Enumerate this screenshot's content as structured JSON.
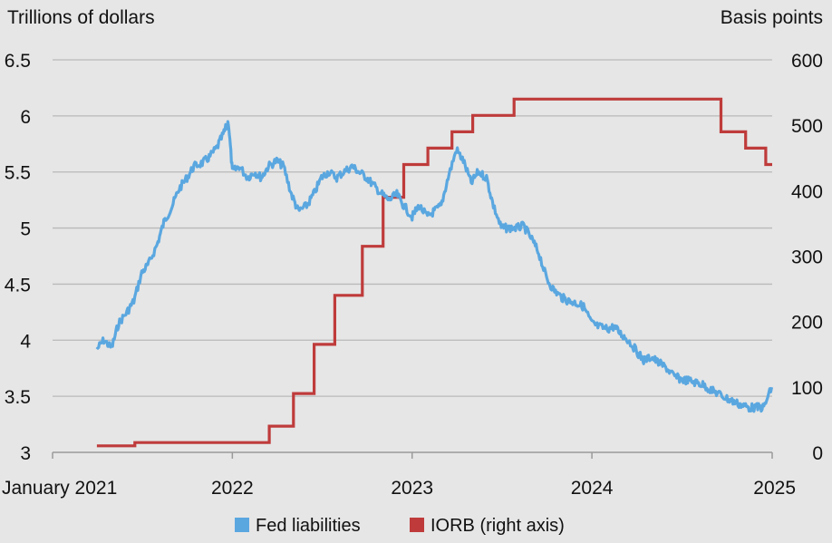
{
  "chart_data": {
    "type": "line",
    "title": "",
    "y_left_label": "Trillions of dollars",
    "y_right_label": "Basis points",
    "ylim_left": [
      3,
      6.5
    ],
    "ylim_right": [
      0,
      600
    ],
    "y_left_ticks": [
      "6.5",
      "6",
      "5.5",
      "5",
      "4.5",
      "4",
      "3.5",
      "3"
    ],
    "y_right_ticks": [
      "600",
      "500",
      "400",
      "300",
      "200",
      "100",
      "0"
    ],
    "x_ticks": [
      {
        "label": "January 2021",
        "date": "2021-01-01"
      },
      {
        "label": "2022",
        "date": "2022-01-01"
      },
      {
        "label": "2023",
        "date": "2023-01-01"
      },
      {
        "label": "2024",
        "date": "2024-01-01"
      },
      {
        "label": "2025",
        "date": "2025-01-01"
      }
    ],
    "grid": true,
    "legend_position": "bottom",
    "series": [
      {
        "name": "Fed liabilities",
        "axis": "left",
        "color": "#5aa7e0",
        "points": [
          [
            "2021-04-01",
            3.92
          ],
          [
            "2021-04-15",
            4.0
          ],
          [
            "2021-05-01",
            3.93
          ],
          [
            "2021-05-15",
            4.15
          ],
          [
            "2021-06-01",
            4.25
          ],
          [
            "2021-06-15",
            4.35
          ],
          [
            "2021-07-01",
            4.6
          ],
          [
            "2021-07-15",
            4.68
          ],
          [
            "2021-08-01",
            4.85
          ],
          [
            "2021-08-15",
            5.05
          ],
          [
            "2021-09-01",
            5.2
          ],
          [
            "2021-09-15",
            5.35
          ],
          [
            "2021-10-01",
            5.45
          ],
          [
            "2021-10-15",
            5.55
          ],
          [
            "2021-11-01",
            5.58
          ],
          [
            "2021-11-15",
            5.63
          ],
          [
            "2021-12-01",
            5.72
          ],
          [
            "2021-12-15",
            5.85
          ],
          [
            "2021-12-24",
            5.95
          ],
          [
            "2022-01-01",
            5.5
          ],
          [
            "2022-01-15",
            5.55
          ],
          [
            "2022-02-01",
            5.45
          ],
          [
            "2022-02-15",
            5.5
          ],
          [
            "2022-03-01",
            5.45
          ],
          [
            "2022-03-15",
            5.55
          ],
          [
            "2022-04-01",
            5.6
          ],
          [
            "2022-04-15",
            5.55
          ],
          [
            "2022-05-01",
            5.3
          ],
          [
            "2022-05-15",
            5.15
          ],
          [
            "2022-06-01",
            5.2
          ],
          [
            "2022-06-15",
            5.3
          ],
          [
            "2022-07-01",
            5.45
          ],
          [
            "2022-07-15",
            5.5
          ],
          [
            "2022-08-01",
            5.45
          ],
          [
            "2022-08-15",
            5.5
          ],
          [
            "2022-09-01",
            5.55
          ],
          [
            "2022-09-15",
            5.5
          ],
          [
            "2022-10-01",
            5.45
          ],
          [
            "2022-10-15",
            5.38
          ],
          [
            "2022-11-01",
            5.3
          ],
          [
            "2022-11-15",
            5.25
          ],
          [
            "2022-12-01",
            5.3
          ],
          [
            "2022-12-15",
            5.2
          ],
          [
            "2023-01-01",
            5.1
          ],
          [
            "2023-01-15",
            5.2
          ],
          [
            "2023-02-01",
            5.1
          ],
          [
            "2023-02-15",
            5.15
          ],
          [
            "2023-03-01",
            5.2
          ],
          [
            "2023-03-15",
            5.45
          ],
          [
            "2023-04-01",
            5.7
          ],
          [
            "2023-04-15",
            5.6
          ],
          [
            "2023-05-01",
            5.4
          ],
          [
            "2023-05-15",
            5.5
          ],
          [
            "2023-06-01",
            5.45
          ],
          [
            "2023-06-15",
            5.2
          ],
          [
            "2023-07-01",
            5.0
          ],
          [
            "2023-07-15",
            5.0
          ],
          [
            "2023-08-01",
            5.0
          ],
          [
            "2023-08-15",
            5.02
          ],
          [
            "2023-09-01",
            4.9
          ],
          [
            "2023-09-15",
            4.78
          ],
          [
            "2023-10-01",
            4.55
          ],
          [
            "2023-10-15",
            4.45
          ],
          [
            "2023-11-01",
            4.38
          ],
          [
            "2023-11-15",
            4.35
          ],
          [
            "2023-12-01",
            4.33
          ],
          [
            "2023-12-15",
            4.3
          ],
          [
            "2024-01-01",
            4.15
          ],
          [
            "2024-01-15",
            4.12
          ],
          [
            "2024-02-01",
            4.1
          ],
          [
            "2024-02-15",
            4.12
          ],
          [
            "2024-03-01",
            4.05
          ],
          [
            "2024-03-15",
            4.0
          ],
          [
            "2024-04-01",
            3.9
          ],
          [
            "2024-04-15",
            3.82
          ],
          [
            "2024-05-01",
            3.85
          ],
          [
            "2024-05-15",
            3.8
          ],
          [
            "2024-06-01",
            3.75
          ],
          [
            "2024-06-15",
            3.68
          ],
          [
            "2024-07-01",
            3.65
          ],
          [
            "2024-07-15",
            3.64
          ],
          [
            "2024-08-01",
            3.62
          ],
          [
            "2024-08-15",
            3.6
          ],
          [
            "2024-09-01",
            3.55
          ],
          [
            "2024-09-15",
            3.52
          ],
          [
            "2024-10-01",
            3.48
          ],
          [
            "2024-10-15",
            3.45
          ],
          [
            "2024-11-01",
            3.42
          ],
          [
            "2024-11-15",
            3.4
          ],
          [
            "2024-12-01",
            3.4
          ],
          [
            "2024-12-15",
            3.4
          ],
          [
            "2024-12-31",
            3.58
          ]
        ]
      },
      {
        "name": "IORB (right axis)",
        "axis": "right",
        "color": "#bf3b3b",
        "steps": [
          [
            "2021-04-01",
            10
          ],
          [
            "2021-06-17",
            15
          ],
          [
            "2022-03-17",
            40
          ],
          [
            "2022-05-05",
            90
          ],
          [
            "2022-06-16",
            165
          ],
          [
            "2022-07-28",
            240
          ],
          [
            "2022-09-22",
            315
          ],
          [
            "2022-11-03",
            390
          ],
          [
            "2022-12-15",
            440
          ],
          [
            "2023-02-02",
            465
          ],
          [
            "2023-03-23",
            490
          ],
          [
            "2023-05-04",
            515
          ],
          [
            "2023-07-27",
            540
          ],
          [
            "2024-09-19",
            490
          ],
          [
            "2024-11-08",
            465
          ],
          [
            "2024-12-19",
            440
          ],
          [
            "2025-01-01",
            440
          ]
        ]
      }
    ]
  }
}
